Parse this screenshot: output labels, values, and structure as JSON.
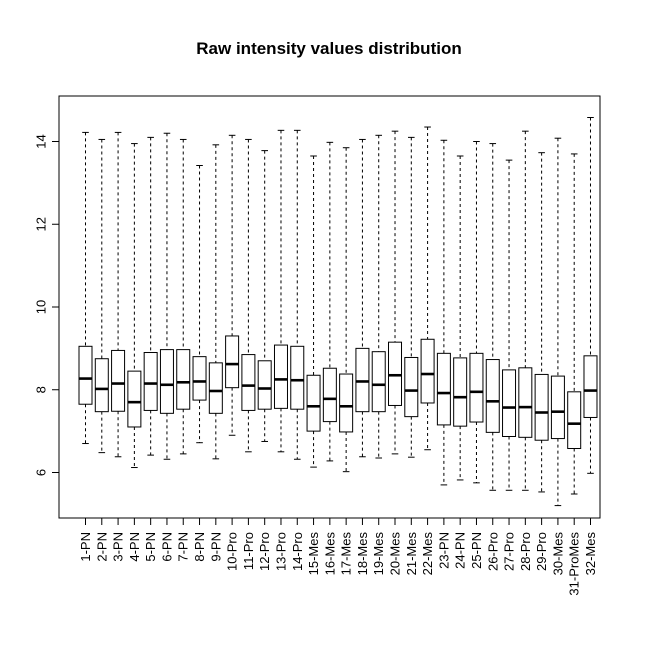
{
  "chart_data": {
    "type": "boxplot",
    "title": "Raw intensity values distribution",
    "xlabel": "",
    "ylabel": "",
    "ylim": [
      4.9,
      15.1
    ],
    "y_ticks": [
      6,
      8,
      10,
      12,
      14
    ],
    "grid": false,
    "legend": "none",
    "categories": [
      "1-PN",
      "2-PN",
      "3-PN",
      "4-PN",
      "5-PN",
      "6-PN",
      "7-PN",
      "8-PN",
      "9-PN",
      "10-Pro",
      "11-Pro",
      "12-Pro",
      "13-Pro",
      "14-Pro",
      "15-Mes",
      "16-Mes",
      "17-Mes",
      "18-Mes",
      "19-Mes",
      "20-Mes",
      "21-Mes",
      "22-Mes",
      "23-PN",
      "24-PN",
      "25-PN",
      "26-Pro",
      "27-Pro",
      "28-Pro",
      "29-Pro",
      "30-Mes",
      "31-ProMes",
      "32-Mes"
    ],
    "series": [
      {
        "boxes": [
          {
            "min": 6.7,
            "q1": 7.65,
            "median": 8.27,
            "q3": 9.05,
            "max": 14.22
          },
          {
            "min": 6.48,
            "q1": 7.47,
            "median": 8.02,
            "q3": 8.75,
            "max": 14.05
          },
          {
            "min": 6.38,
            "q1": 7.48,
            "median": 8.15,
            "q3": 8.95,
            "max": 14.22
          },
          {
            "min": 6.12,
            "q1": 7.1,
            "median": 7.7,
            "q3": 8.45,
            "max": 13.95
          },
          {
            "min": 6.42,
            "q1": 7.5,
            "median": 8.15,
            "q3": 8.9,
            "max": 14.1
          },
          {
            "min": 6.32,
            "q1": 7.43,
            "median": 8.12,
            "q3": 8.97,
            "max": 14.2
          },
          {
            "min": 6.45,
            "q1": 7.53,
            "median": 8.18,
            "q3": 8.97,
            "max": 14.05
          },
          {
            "min": 6.72,
            "q1": 7.75,
            "median": 8.2,
            "q3": 8.8,
            "max": 13.42
          },
          {
            "min": 6.33,
            "q1": 7.43,
            "median": 7.97,
            "q3": 8.65,
            "max": 13.92
          },
          {
            "min": 6.9,
            "q1": 8.05,
            "median": 8.62,
            "q3": 9.3,
            "max": 14.15
          },
          {
            "min": 6.5,
            "q1": 7.5,
            "median": 8.1,
            "q3": 8.85,
            "max": 14.05
          },
          {
            "min": 6.75,
            "q1": 7.53,
            "median": 8.03,
            "q3": 8.7,
            "max": 13.78
          },
          {
            "min": 6.5,
            "q1": 7.55,
            "median": 8.25,
            "q3": 9.08,
            "max": 14.27
          },
          {
            "min": 6.32,
            "q1": 7.53,
            "median": 8.23,
            "q3": 9.05,
            "max": 14.27
          },
          {
            "min": 6.13,
            "q1": 7.0,
            "median": 7.6,
            "q3": 8.35,
            "max": 13.65
          },
          {
            "min": 6.28,
            "q1": 7.23,
            "median": 7.78,
            "q3": 8.52,
            "max": 13.98
          },
          {
            "min": 6.02,
            "q1": 6.98,
            "median": 7.6,
            "q3": 8.38,
            "max": 13.85
          },
          {
            "min": 6.38,
            "q1": 7.47,
            "median": 8.2,
            "q3": 9.0,
            "max": 14.05
          },
          {
            "min": 6.35,
            "q1": 7.47,
            "median": 8.12,
            "q3": 8.92,
            "max": 14.15
          },
          {
            "min": 6.45,
            "q1": 7.62,
            "median": 8.35,
            "q3": 9.15,
            "max": 14.25
          },
          {
            "min": 6.37,
            "q1": 7.35,
            "median": 7.98,
            "q3": 8.78,
            "max": 14.1
          },
          {
            "min": 6.55,
            "q1": 7.68,
            "median": 8.38,
            "q3": 9.22,
            "max": 14.35
          },
          {
            "min": 5.7,
            "q1": 7.15,
            "median": 7.92,
            "q3": 8.88,
            "max": 14.03
          },
          {
            "min": 5.82,
            "q1": 7.12,
            "median": 7.82,
            "q3": 8.77,
            "max": 13.65
          },
          {
            "min": 5.75,
            "q1": 7.22,
            "median": 7.95,
            "q3": 8.88,
            "max": 14.0
          },
          {
            "min": 5.57,
            "q1": 6.97,
            "median": 7.72,
            "q3": 8.73,
            "max": 13.95
          },
          {
            "min": 5.57,
            "q1": 6.87,
            "median": 7.57,
            "q3": 8.48,
            "max": 13.55
          },
          {
            "min": 5.57,
            "q1": 6.85,
            "median": 7.58,
            "q3": 8.53,
            "max": 14.25
          },
          {
            "min": 5.53,
            "q1": 6.78,
            "median": 7.45,
            "q3": 8.37,
            "max": 13.73
          },
          {
            "min": 5.2,
            "q1": 6.82,
            "median": 7.47,
            "q3": 8.33,
            "max": 14.08
          },
          {
            "min": 5.48,
            "q1": 6.58,
            "median": 7.18,
            "q3": 7.95,
            "max": 13.7
          },
          {
            "min": 5.98,
            "q1": 7.33,
            "median": 7.98,
            "q3": 8.82,
            "max": 14.58
          }
        ]
      }
    ],
    "colors": {
      "box_fill": "#ffffff",
      "stroke": "#000000",
      "frame": "#000000"
    }
  }
}
